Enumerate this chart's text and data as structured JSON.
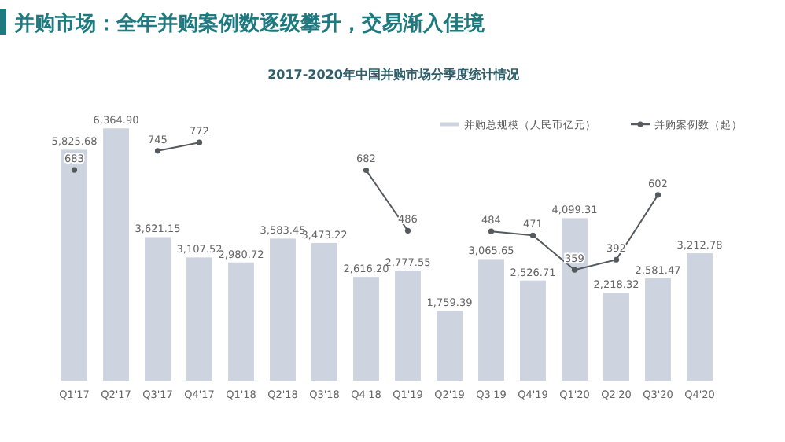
{
  "chart_data": {
    "type": "bar",
    "title": "并购市场：全年并购案例数逐级攀升，交易渐入佳境",
    "subtitle": "2017-2020年中国并购市场分季度统计情况",
    "categories": [
      "Q1'17",
      "Q2'17",
      "Q3'17",
      "Q4'17",
      "Q1'18",
      "Q2'18",
      "Q3'18",
      "Q4'18",
      "Q1'19",
      "Q2'19",
      "Q3'19",
      "Q4'19",
      "Q1'20",
      "Q2'20",
      "Q3'20",
      "Q4'20"
    ],
    "series": [
      {
        "name": "并购总规模（人民币亿元）",
        "color": "#cdd3df",
        "values": [
          5825.68,
          6364.9,
          3621.15,
          3107.52,
          2980.72,
          3583.45,
          3473.22,
          2616.2,
          2777.55,
          1759.39,
          3065.65,
          2526.71,
          4099.31,
          2218.32,
          2581.47,
          3212.78
        ],
        "value_labels": [
          "5,825.68",
          "6,364.90",
          "3,621.15",
          "3,107.52",
          "2,980.72",
          "3,583.45",
          "3,473.22",
          "2,616.20",
          "2,777.55",
          "1,759.39",
          "3,065.65",
          "2,526.71",
          "4,099.31",
          "2,218.32",
          "2,581.47",
          "3,212.78"
        ]
      },
      {
        "name": "并购案例数（起）",
        "type": "line",
        "axis": "y2",
        "color": "#555a5e",
        "marker": "circle",
        "values": [
          683,
          null,
          745,
          772,
          null,
          null,
          null,
          682,
          486,
          null,
          484,
          471,
          359,
          392,
          602,
          null
        ]
      }
    ],
    "data_labels": true,
    "legend": "top right",
    "grid": false
  }
}
